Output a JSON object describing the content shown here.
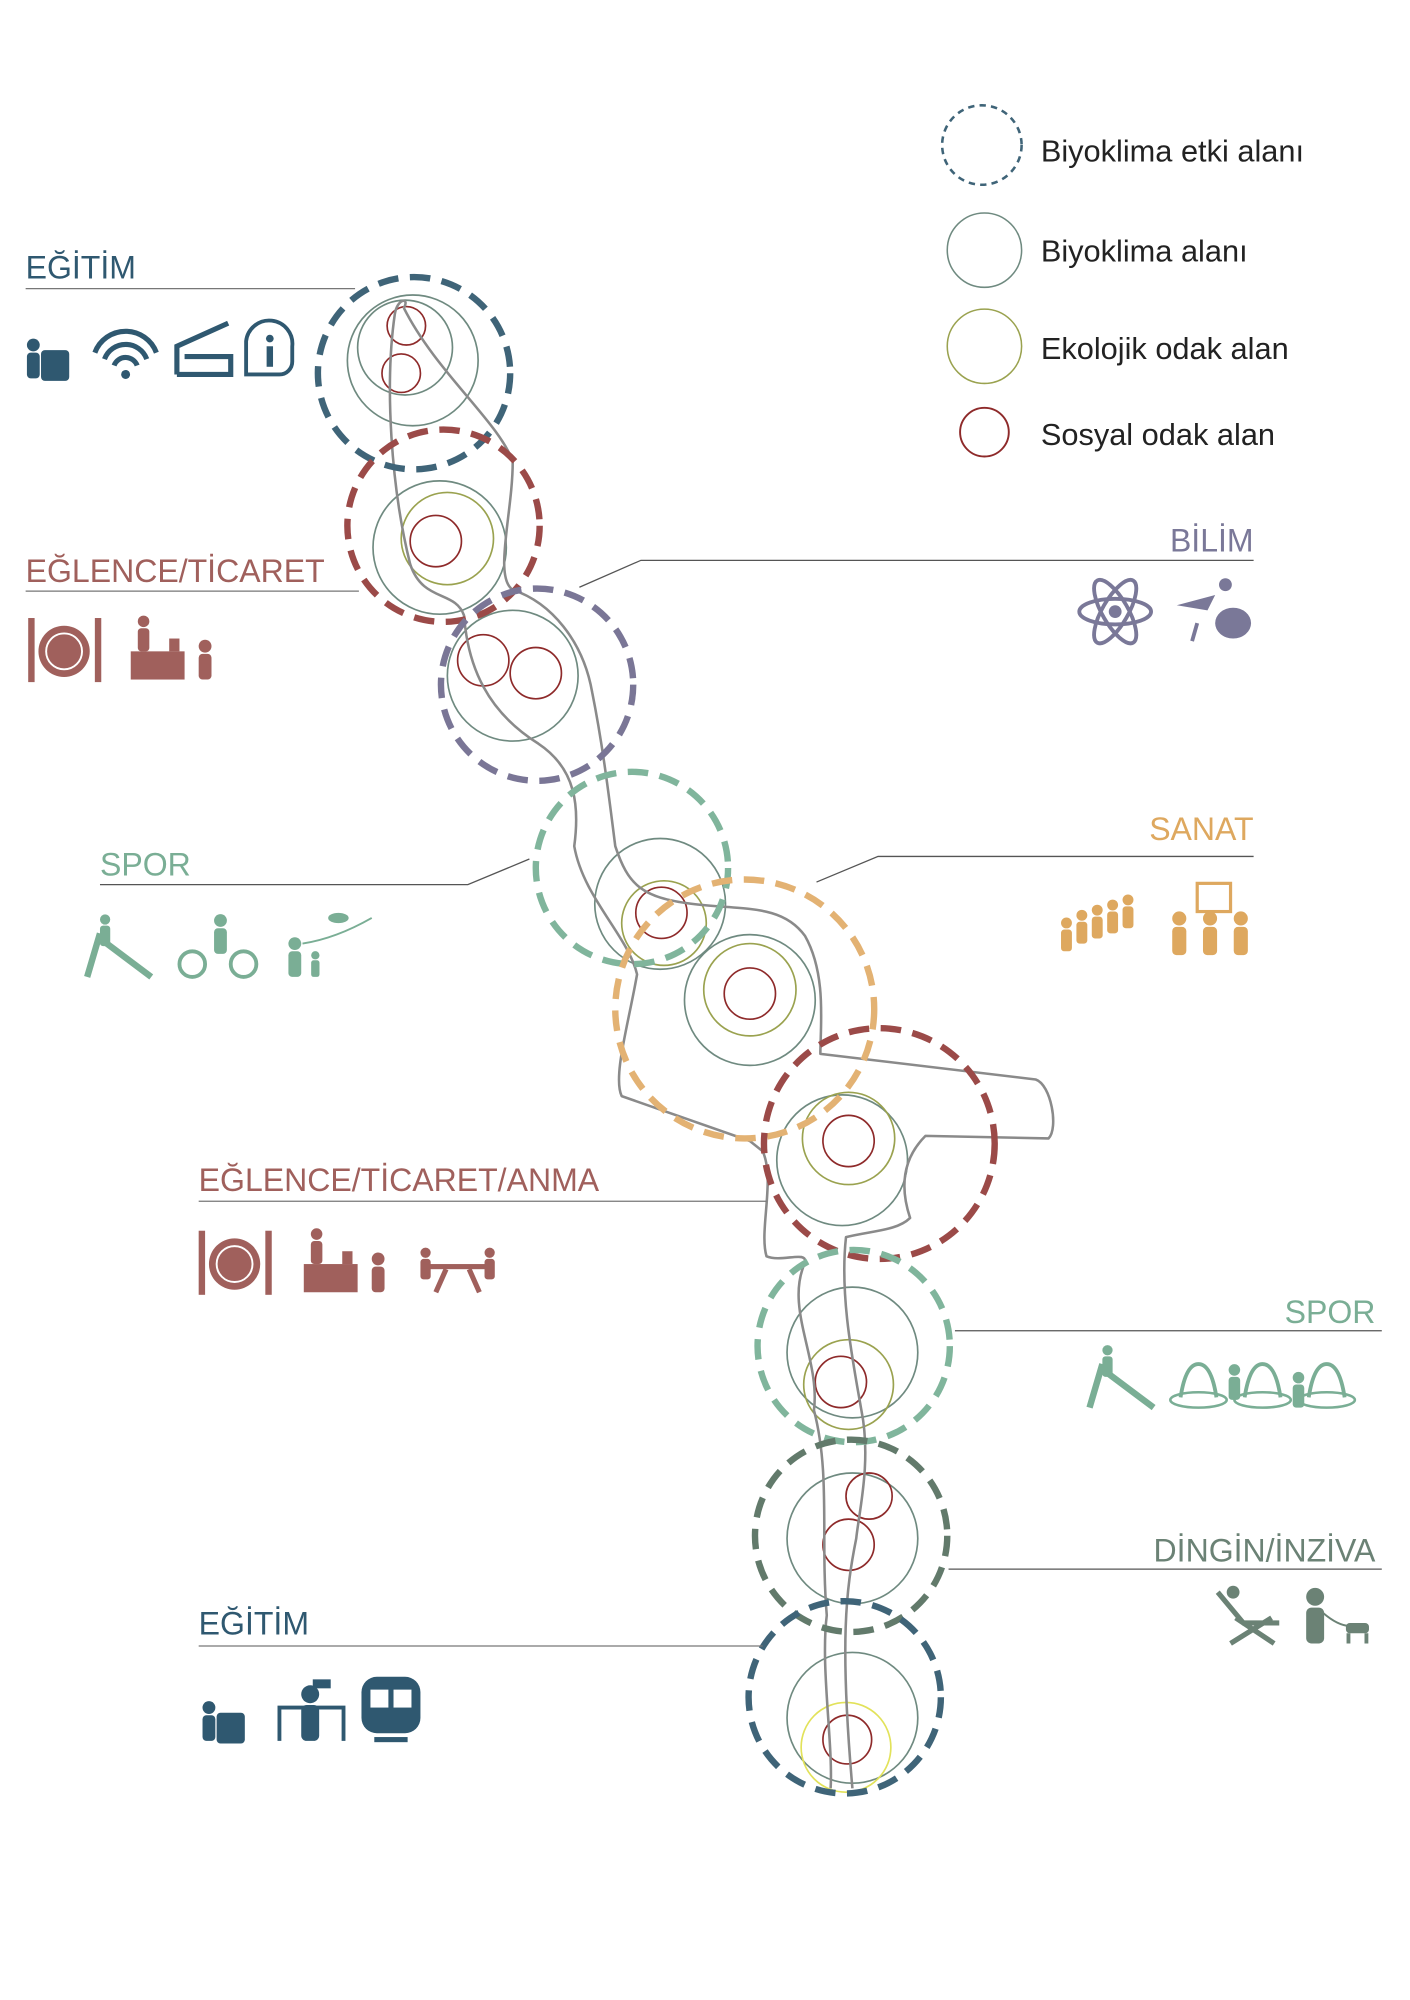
{
  "legend": [
    {
      "label": "Biyoklima etki alanı",
      "color": "#3f6478",
      "style": "dashed"
    },
    {
      "label": "Biyoklima alanı",
      "color": "#6f8a80",
      "style": "solid"
    },
    {
      "label": "Ekolojik odak alan",
      "color": "#9aa24f",
      "style": "solid"
    },
    {
      "label": "Sosyal odak alan",
      "color": "#8e2a2a",
      "style": "solid"
    }
  ],
  "zones": [
    {
      "label": "EĞİTİM",
      "color": "#2f5870",
      "icons": [
        "person-at-laptop-icon",
        "wifi-icon",
        "hostel-bed-icon",
        "info-icon"
      ]
    },
    {
      "label": "EĞLENCE/TİCARET",
      "color": "#a0605c",
      "icons": [
        "plate-cutlery-icon",
        "cashier-icon"
      ]
    },
    {
      "label": "BİLİM",
      "color": "#7a7898",
      "icons": [
        "atom-icon",
        "animals-icon"
      ]
    },
    {
      "label": "SPOR",
      "color": "#7aae95",
      "icons": [
        "slide-icon",
        "bicycle-icon",
        "kite-icon"
      ]
    },
    {
      "label": "SANAT",
      "color": "#dea85f",
      "icons": [
        "crowd-icon",
        "exhibition-icon"
      ]
    },
    {
      "label": "EĞLENCE/TİCARET/ANMA",
      "color": "#a0605c",
      "icons": [
        "plate-cutlery-icon",
        "cashier-icon",
        "picnic-icon"
      ]
    },
    {
      "label": "SPOR",
      "color": "#7aae95",
      "icons": [
        "slide-icon",
        "fountain-play-icon"
      ]
    },
    {
      "label": "DİNGİN/İNZİVA",
      "color": "#6b8275",
      "icons": [
        "lounger-icon",
        "dog-walker-icon"
      ]
    },
    {
      "label": "EĞİTİM",
      "color": "#2f5870",
      "icons": [
        "person-at-laptop-icon",
        "binoculars-icon",
        "train-icon"
      ]
    }
  ],
  "colors": {
    "blue": "#3f6478",
    "red": "#9b4a48",
    "purple": "#7a7696",
    "green": "#80b59c",
    "orange": "#e3b273",
    "darkgreen": "#627a6b",
    "path": "#8a8a8a",
    "yellow": "#e2e25a"
  }
}
